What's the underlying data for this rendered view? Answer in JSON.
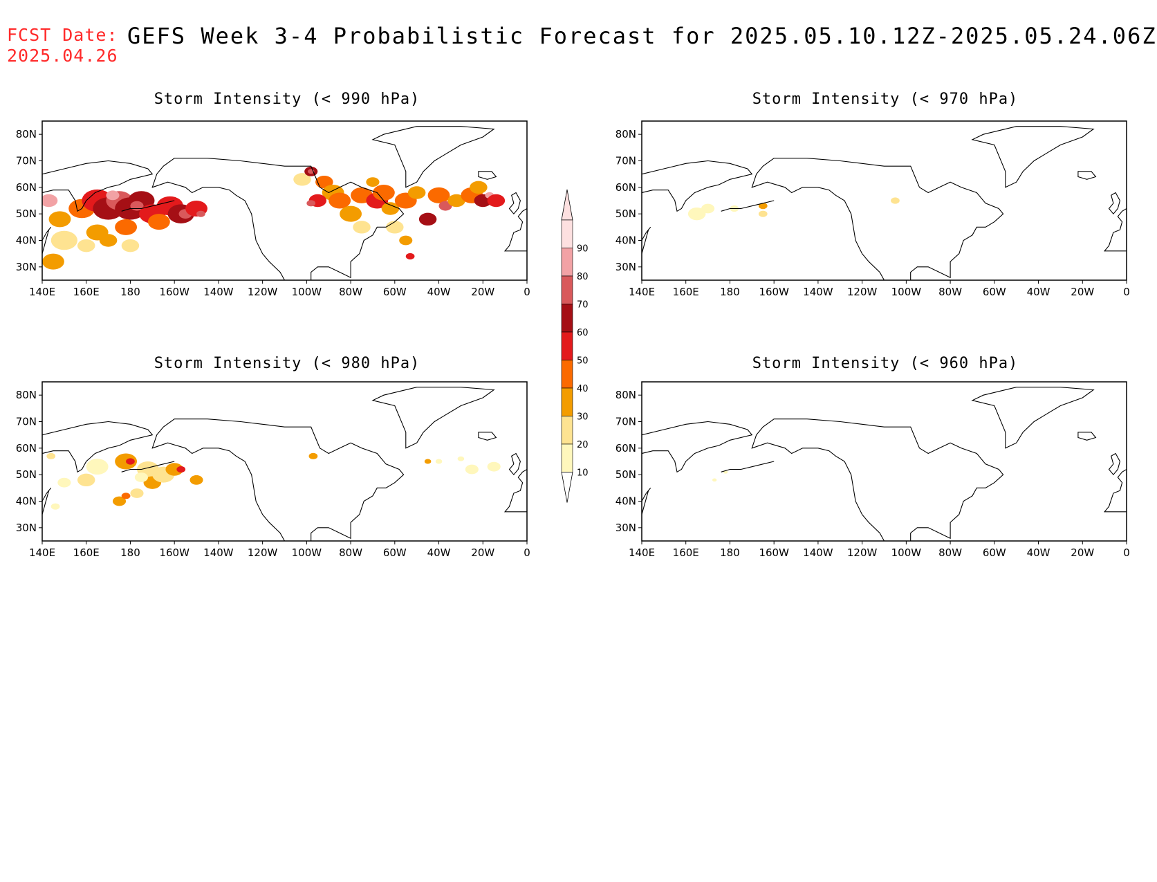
{
  "header": {
    "fcst_label": "FCST Date:",
    "fcst_date": "2025.04.26",
    "title": "GEFS Week 3-4 Probabilistic Forecast for 2025.05.10.12Z-2025.05.24.06Z"
  },
  "axes": {
    "lon_ticks": [
      "140E",
      "160E",
      "180",
      "160W",
      "140W",
      "120W",
      "100W",
      "80W",
      "60W",
      "40W",
      "20W",
      "0"
    ],
    "lat_ticks": [
      "80N",
      "70N",
      "60N",
      "50N",
      "40N",
      "30N"
    ]
  },
  "panels": [
    {
      "title": "Storm Intensity (< 990 hPa)",
      "coverage": "widespread"
    },
    {
      "title": "Storm Intensity (< 970 hPa)",
      "coverage": "sparse"
    },
    {
      "title": "Storm Intensity (< 980 hPa)",
      "coverage": "moderate"
    },
    {
      "title": "Storm Intensity (< 960 hPa)",
      "coverage": "minimal"
    }
  ],
  "colorbar": {
    "levels": [
      "10",
      "20",
      "30",
      "40",
      "50",
      "60",
      "70",
      "80",
      "90"
    ],
    "colors": [
      "#fff7bc",
      "#fee391",
      "#f39c00",
      "#fb6a00",
      "#e31a1c",
      "#a50f15",
      "#d9595b",
      "#f2a2a5",
      "#fde0e0"
    ]
  }
}
